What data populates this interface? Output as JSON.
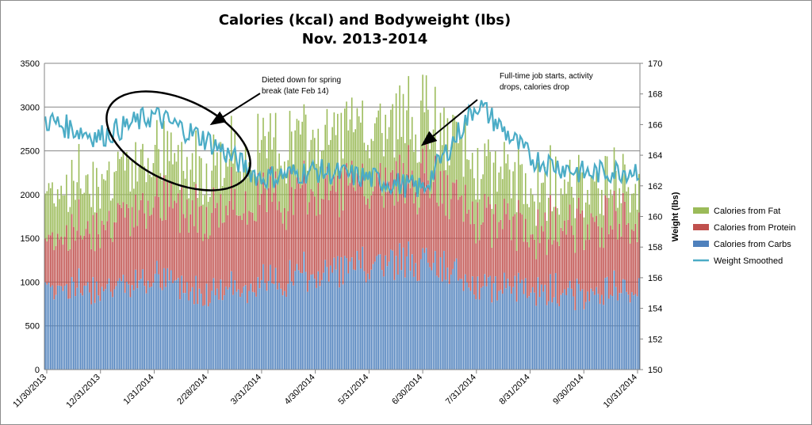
{
  "chart_data": {
    "type": "bar",
    "title": "Calories (kcal) and Bodyweight (lbs)",
    "subtitle": "Nov. 2013-2014",
    "ylabel": "",
    "y2label": "Weight (lbs)",
    "ylim": [
      0,
      3500
    ],
    "y2lim": [
      150,
      170
    ],
    "yticks": [
      "0",
      "500",
      "1000",
      "1500",
      "2000",
      "2500",
      "3000",
      "3500"
    ],
    "y2ticks": [
      "150",
      "152",
      "154",
      "156",
      "158",
      "160",
      "162",
      "164",
      "166",
      "168",
      "170"
    ],
    "xticks": [
      "11/30/2013",
      "12/31/2013",
      "1/31/2014",
      "2/28/2014",
      "3/31/2014",
      "4/30/2014",
      "5/31/2014",
      "6/30/2014",
      "7/31/2014",
      "8/31/2014",
      "9/30/2014",
      "10/31/2014"
    ],
    "grid": true,
    "legend_position": "right",
    "stacked": true,
    "series": [
      {
        "name": "Calories from Fat",
        "color": "#9bbb59",
        "values_by_month": [
          560,
          560,
          550,
          520,
          600,
          640,
          680,
          700,
          600,
          520,
          440,
          430
        ]
      },
      {
        "name": "Calories from Protein",
        "color": "#c0504d",
        "values_by_month": [
          560,
          760,
          900,
          980,
          1000,
          980,
          930,
          980,
          830,
          700,
          830,
          800
        ]
      },
      {
        "name": "Calories from Carbs",
        "color": "#4f81bd",
        "values_by_month": [
          1020,
          960,
          1060,
          920,
          1000,
          1130,
          1220,
          1280,
          1000,
          950,
          900,
          960
        ]
      },
      {
        "name": "Weight Smoothed",
        "color": "#4bacc6",
        "type": "line",
        "axis": "y2",
        "values_by_month": [
          166.3,
          165.2,
          166.6,
          165.0,
          162.5,
          163.0,
          162.5,
          161.8,
          167.4,
          163.8,
          162.8,
          163.1
        ]
      }
    ],
    "annotations": [
      {
        "text_lines": [
          "Dieted down for spring",
          "break (late Feb 14)"
        ]
      },
      {
        "text_lines": [
          "Full-time job starts, activity",
          "drops, calories drop"
        ]
      }
    ]
  }
}
